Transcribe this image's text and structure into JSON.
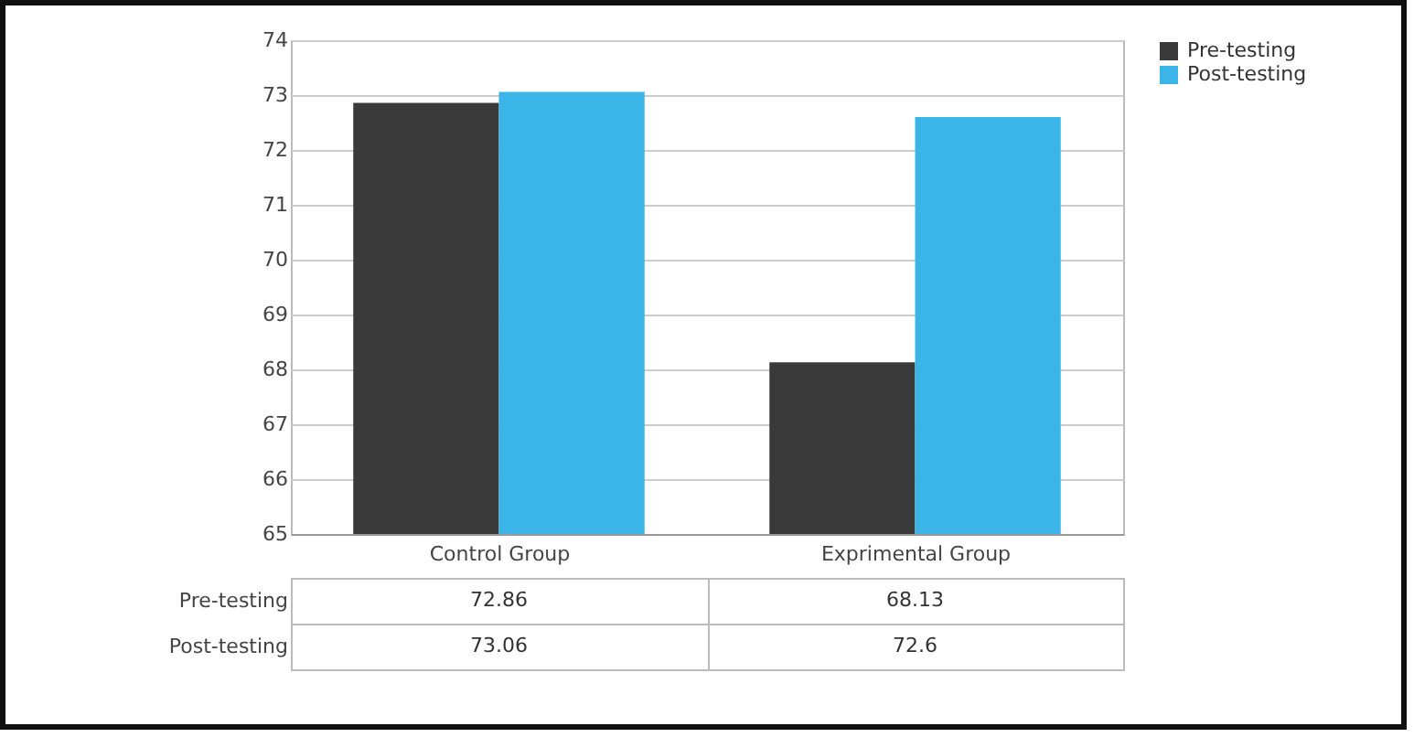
{
  "chart_data": {
    "type": "bar",
    "categories": [
      "Control Group",
      "Exprimental Group"
    ],
    "series": [
      {
        "name": "Pre-testing",
        "color": "#3a3a3a",
        "values": [
          72.86,
          68.13
        ]
      },
      {
        "name": "Post-testing",
        "color": "#3bb5e8",
        "values": [
          73.06,
          72.6
        ]
      }
    ],
    "ylim": [
      65,
      74
    ],
    "yticks": [
      65,
      66,
      67,
      68,
      69,
      70,
      71,
      72,
      73,
      74
    ],
    "grid": "y",
    "legend": "right",
    "data_labels": true
  }
}
